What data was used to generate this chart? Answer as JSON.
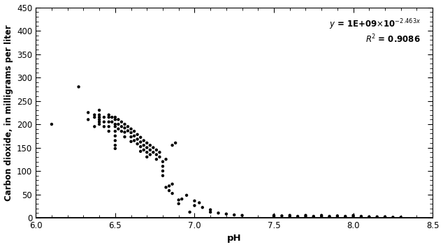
{
  "xlabel": "pH",
  "ylabel": "Carbon dioxide, in milligrams per liter",
  "xlim": [
    6.0,
    8.5
  ],
  "ylim": [
    0,
    450
  ],
  "xticks": [
    6.0,
    6.5,
    7.0,
    7.5,
    8.0,
    8.5
  ],
  "yticks": [
    0,
    50,
    100,
    150,
    200,
    250,
    300,
    350,
    400,
    450
  ],
  "equation_coeff": 1000000000,
  "equation_exp_factor": -2.463,
  "r_squared": 0.9086,
  "scatter_color": "#000000",
  "line_color": "#000000",
  "background_color": "#ffffff",
  "scatter_points": [
    [
      6.1,
      200
    ],
    [
      6.27,
      280
    ],
    [
      6.33,
      225
    ],
    [
      6.33,
      210
    ],
    [
      6.37,
      220
    ],
    [
      6.37,
      215
    ],
    [
      6.37,
      195
    ],
    [
      6.4,
      230
    ],
    [
      6.4,
      220
    ],
    [
      6.4,
      215
    ],
    [
      6.4,
      210
    ],
    [
      6.4,
      205
    ],
    [
      6.4,
      200
    ],
    [
      6.43,
      215
    ],
    [
      6.43,
      205
    ],
    [
      6.43,
      195
    ],
    [
      6.46,
      220
    ],
    [
      6.46,
      215
    ],
    [
      6.46,
      205
    ],
    [
      6.46,
      195
    ],
    [
      6.46,
      185
    ],
    [
      6.48,
      215
    ],
    [
      6.48,
      205
    ],
    [
      6.5,
      215
    ],
    [
      6.5,
      210
    ],
    [
      6.5,
      200
    ],
    [
      6.5,
      195
    ],
    [
      6.5,
      185
    ],
    [
      6.5,
      175
    ],
    [
      6.5,
      165
    ],
    [
      6.5,
      155
    ],
    [
      6.5,
      148
    ],
    [
      6.52,
      210
    ],
    [
      6.52,
      200
    ],
    [
      6.52,
      190
    ],
    [
      6.54,
      205
    ],
    [
      6.54,
      195
    ],
    [
      6.54,
      185
    ],
    [
      6.56,
      200
    ],
    [
      6.56,
      192
    ],
    [
      6.56,
      183
    ],
    [
      6.56,
      173
    ],
    [
      6.58,
      195
    ],
    [
      6.58,
      186
    ],
    [
      6.6,
      190
    ],
    [
      6.6,
      182
    ],
    [
      6.6,
      173
    ],
    [
      6.6,
      163
    ],
    [
      6.62,
      185
    ],
    [
      6.62,
      175
    ],
    [
      6.62,
      165
    ],
    [
      6.64,
      178
    ],
    [
      6.64,
      168
    ],
    [
      6.64,
      158
    ],
    [
      6.66,
      172
    ],
    [
      6.66,
      162
    ],
    [
      6.66,
      152
    ],
    [
      6.66,
      142
    ],
    [
      6.68,
      165
    ],
    [
      6.68,
      155
    ],
    [
      6.68,
      145
    ],
    [
      6.7,
      160
    ],
    [
      6.7,
      150
    ],
    [
      6.7,
      140
    ],
    [
      6.7,
      130
    ],
    [
      6.72,
      155
    ],
    [
      6.72,
      145
    ],
    [
      6.72,
      135
    ],
    [
      6.74,
      150
    ],
    [
      6.74,
      140
    ],
    [
      6.76,
      145
    ],
    [
      6.76,
      135
    ],
    [
      6.76,
      125
    ],
    [
      6.78,
      140
    ],
    [
      6.78,
      130
    ],
    [
      6.8,
      120
    ],
    [
      6.8,
      110
    ],
    [
      6.8,
      100
    ],
    [
      6.8,
      90
    ],
    [
      6.82,
      125
    ],
    [
      6.82,
      65
    ],
    [
      6.84,
      68
    ],
    [
      6.84,
      58
    ],
    [
      6.86,
      155
    ],
    [
      6.86,
      72
    ],
    [
      6.86,
      52
    ],
    [
      6.88,
      160
    ],
    [
      6.9,
      38
    ],
    [
      6.9,
      30
    ],
    [
      6.92,
      40
    ],
    [
      6.95,
      48
    ],
    [
      6.97,
      12
    ],
    [
      7.0,
      36
    ],
    [
      7.0,
      26
    ],
    [
      7.03,
      32
    ],
    [
      7.05,
      22
    ],
    [
      7.1,
      17
    ],
    [
      7.1,
      12
    ],
    [
      7.15,
      10
    ],
    [
      7.2,
      8
    ],
    [
      7.25,
      6
    ],
    [
      7.3,
      5
    ],
    [
      7.5,
      5
    ],
    [
      7.5,
      3
    ],
    [
      7.55,
      4
    ],
    [
      7.6,
      5
    ],
    [
      7.6,
      2
    ],
    [
      7.65,
      3
    ],
    [
      7.7,
      5
    ],
    [
      7.7,
      2
    ],
    [
      7.75,
      3
    ],
    [
      7.75,
      1
    ],
    [
      7.8,
      5
    ],
    [
      7.8,
      2
    ],
    [
      7.85,
      3
    ],
    [
      7.85,
      1
    ],
    [
      7.9,
      4
    ],
    [
      7.9,
      1
    ],
    [
      7.95,
      3
    ],
    [
      7.95,
      1
    ],
    [
      8.0,
      5
    ],
    [
      8.0,
      2
    ],
    [
      8.05,
      3
    ],
    [
      8.05,
      1
    ],
    [
      8.1,
      2
    ],
    [
      8.1,
      1
    ],
    [
      8.15,
      2
    ],
    [
      8.2,
      1
    ],
    [
      8.2,
      2
    ],
    [
      8.25,
      1
    ],
    [
      8.3,
      1
    ]
  ]
}
